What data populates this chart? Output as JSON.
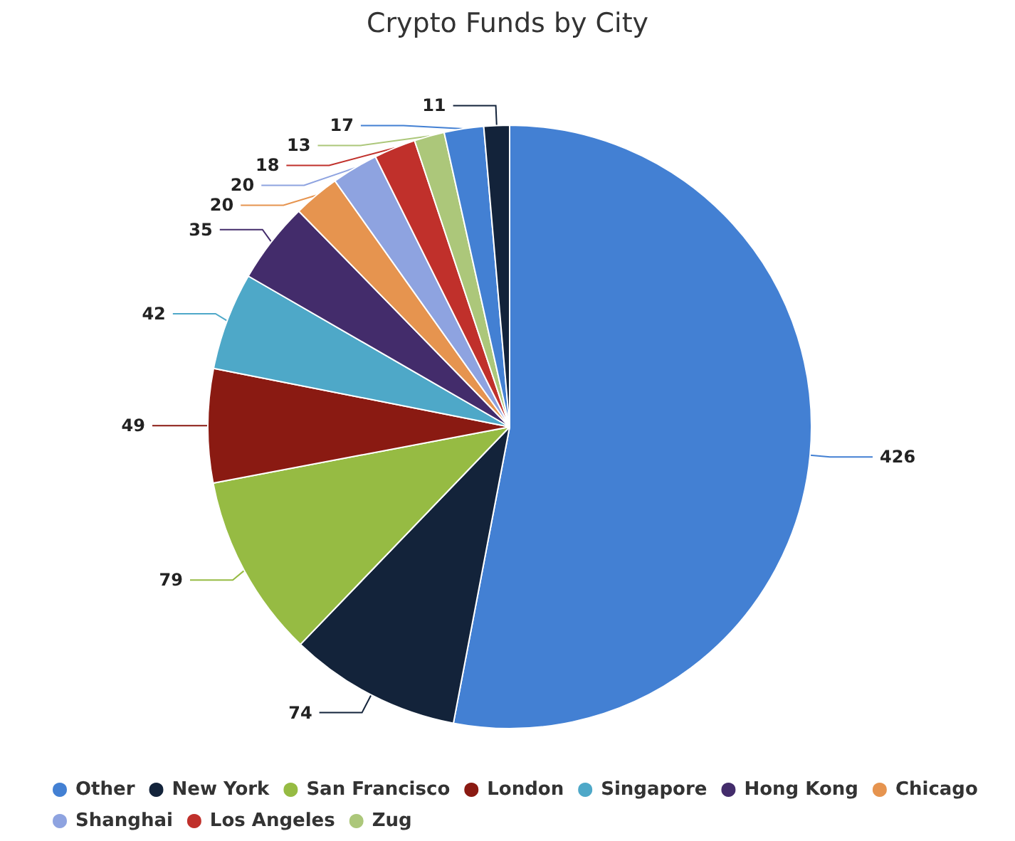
{
  "chart_data": {
    "type": "pie",
    "title": "Crypto Funds by City",
    "categories": [
      "Other",
      "New York",
      "San Francisco",
      "London",
      "Singapore",
      "Hong Kong",
      "Chicago",
      "Shanghai",
      "Los Angeles",
      "Zug",
      null,
      null
    ],
    "values": [
      426,
      74,
      79,
      49,
      42,
      35,
      20,
      20,
      18,
      13,
      17,
      11
    ],
    "colors": [
      "#4380d3",
      "#13233a",
      "#96bb43",
      "#8a1a12",
      "#4ea8c8",
      "#432c6b",
      "#e6944f",
      "#8ea3e0",
      "#c0302b",
      "#acc77a",
      "#4380d3",
      "#13233a"
    ],
    "data_labels": true,
    "legend": "bottom"
  }
}
